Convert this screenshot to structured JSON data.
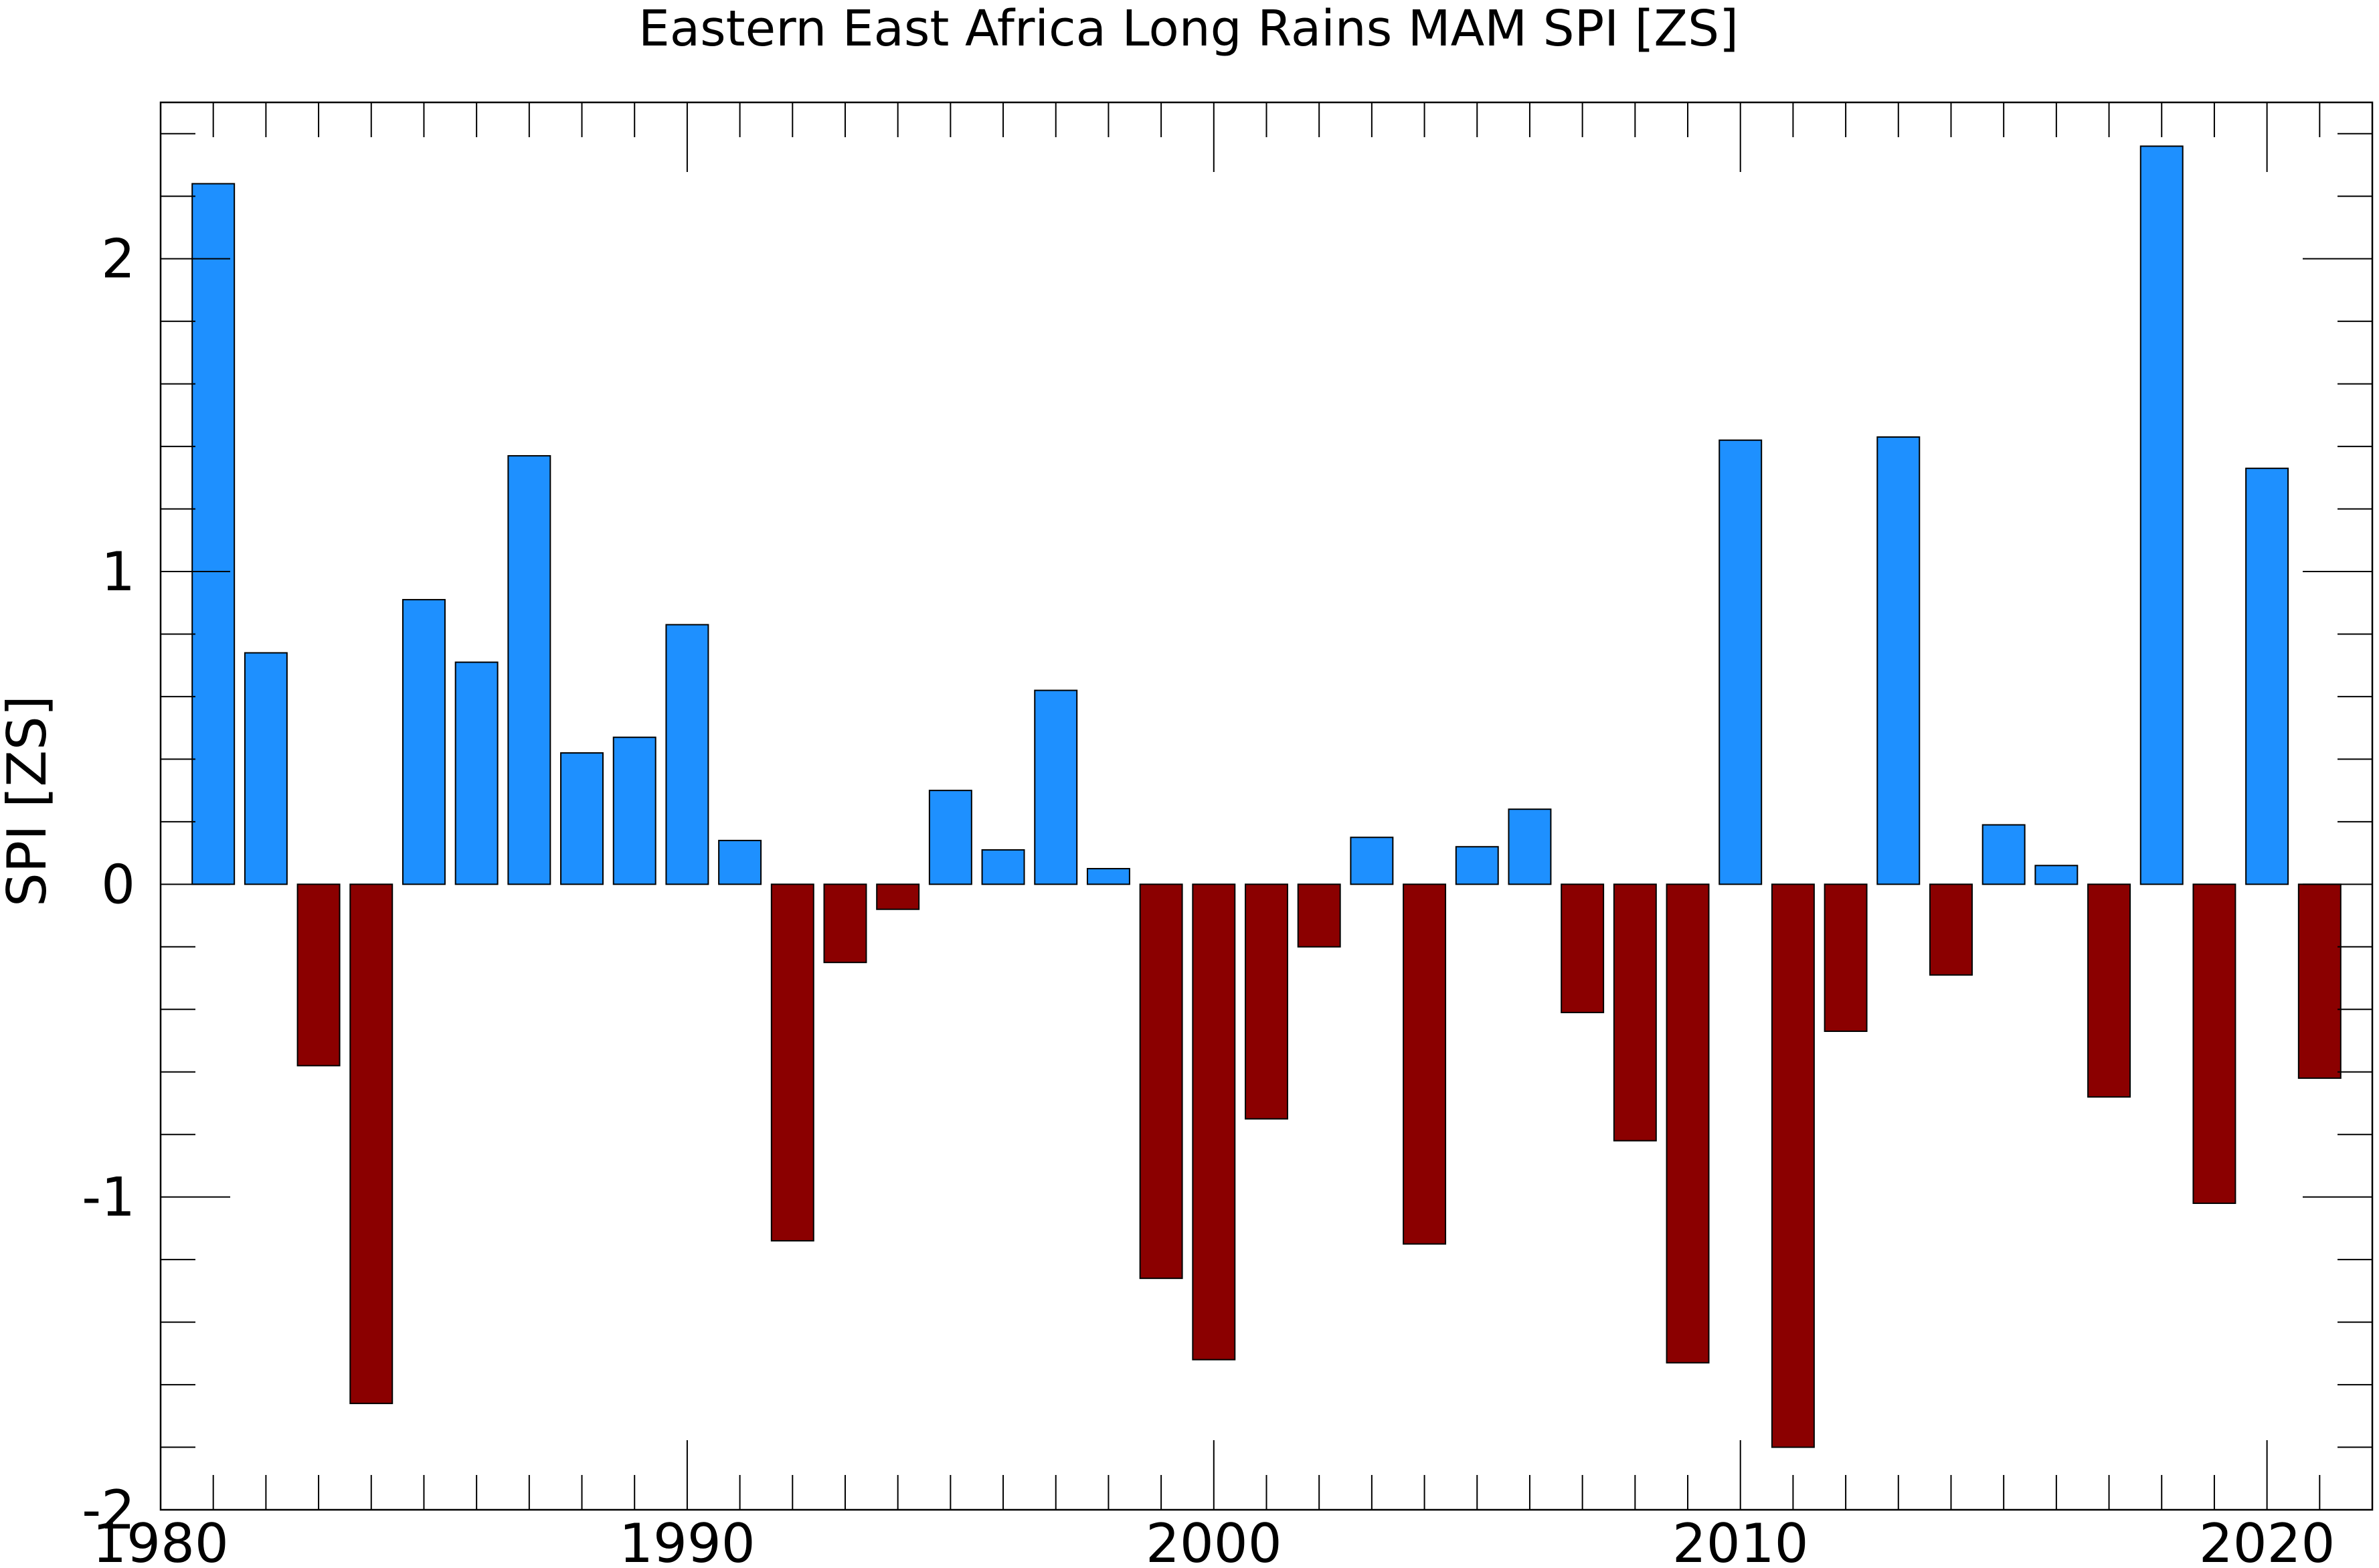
{
  "chart_data": {
    "type": "bar",
    "title": "Eastern East Africa Long Rains MAM SPI [ZS]",
    "xlabel": "",
    "ylabel": "SPI [ZS]",
    "xlim": [
      1980,
      2022
    ],
    "ylim": [
      -2,
      2.5
    ],
    "x_ticks": [
      1980,
      1990,
      2000,
      2010,
      2020
    ],
    "y_ticks": [
      -2,
      -1,
      0,
      1,
      2
    ],
    "grid": false,
    "positive_color": "#1E90FF",
    "negative_color": "#8B0000",
    "years": [
      1981,
      1982,
      1983,
      1984,
      1985,
      1986,
      1987,
      1988,
      1989,
      1990,
      1991,
      1992,
      1993,
      1994,
      1995,
      1996,
      1997,
      1998,
      1999,
      2000,
      2001,
      2002,
      2003,
      2004,
      2005,
      2006,
      2007,
      2008,
      2009,
      2010,
      2011,
      2012,
      2013,
      2014,
      2015,
      2016,
      2017,
      2018,
      2019,
      2020,
      2021
    ],
    "values": [
      2.24,
      0.74,
      -0.58,
      -1.66,
      0.91,
      0.71,
      1.37,
      0.42,
      0.47,
      0.83,
      0.14,
      -1.14,
      -0.25,
      -0.08,
      0.3,
      0.11,
      0.62,
      0.05,
      -1.26,
      -1.52,
      -0.75,
      -0.2,
      0.15,
      -1.15,
      0.12,
      0.24,
      -0.41,
      -0.82,
      -1.53,
      1.42,
      -1.8,
      -0.47,
      1.43,
      -0.29,
      0.19,
      0.06,
      -0.68,
      2.36,
      -1.02,
      1.33,
      -0.62
    ]
  }
}
